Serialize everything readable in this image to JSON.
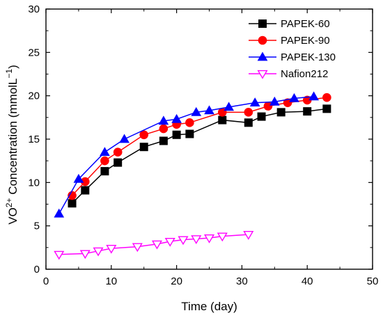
{
  "chart_data": {
    "type": "line",
    "xlabel": "Time (day)",
    "ylabel": {
      "prefix": "VO",
      "superscript": "2+",
      "middle": " Concentration (mmolL",
      "superscript2": "−1",
      "suffix": ")"
    },
    "xlim": [
      0,
      50
    ],
    "ylim": [
      0,
      30
    ],
    "xticks": [
      0,
      10,
      20,
      30,
      40,
      50
    ],
    "yticks": [
      0,
      5,
      10,
      15,
      20,
      25,
      30
    ],
    "grid": false,
    "legend_position": "top-right",
    "series": [
      {
        "name": "PAPEK-60",
        "color": "#000000",
        "marker": "square",
        "x": [
          4,
          6,
          9,
          11,
          15,
          18,
          20,
          22,
          27,
          31,
          33,
          36,
          40,
          43
        ],
        "y": [
          7.6,
          9.1,
          11.3,
          12.3,
          14.1,
          14.8,
          15.5,
          15.6,
          17.2,
          16.9,
          17.6,
          18.1,
          18.2,
          18.5
        ]
      },
      {
        "name": "PAPEK-90",
        "color": "#ff0000",
        "marker": "circle",
        "x": [
          4,
          6,
          9,
          11,
          15,
          18,
          20,
          22,
          27,
          31,
          34,
          37,
          40,
          43
        ],
        "y": [
          8.5,
          10.1,
          12.5,
          13.5,
          15.5,
          16.2,
          16.7,
          16.9,
          18.1,
          18.1,
          18.8,
          19.2,
          19.5,
          19.8
        ]
      },
      {
        "name": "PAPEK-130",
        "color": "#0000ff",
        "marker": "triangle",
        "x": [
          2,
          5,
          9,
          12,
          18,
          20,
          23,
          25,
          28,
          32,
          35,
          38,
          41
        ],
        "y": [
          6.4,
          10.4,
          13.5,
          15.0,
          17.1,
          17.3,
          18.1,
          18.3,
          18.7,
          19.2,
          19.3,
          19.7,
          19.9
        ]
      },
      {
        "name": "Nafion212",
        "color": "#ff00ff",
        "marker": "triangle-down-open",
        "x": [
          2,
          6,
          8,
          10,
          14,
          17,
          19,
          21,
          23,
          25,
          27,
          31
        ],
        "y": [
          1.7,
          1.8,
          2.1,
          2.4,
          2.6,
          2.9,
          3.2,
          3.4,
          3.5,
          3.6,
          3.8,
          4.0
        ]
      }
    ]
  }
}
